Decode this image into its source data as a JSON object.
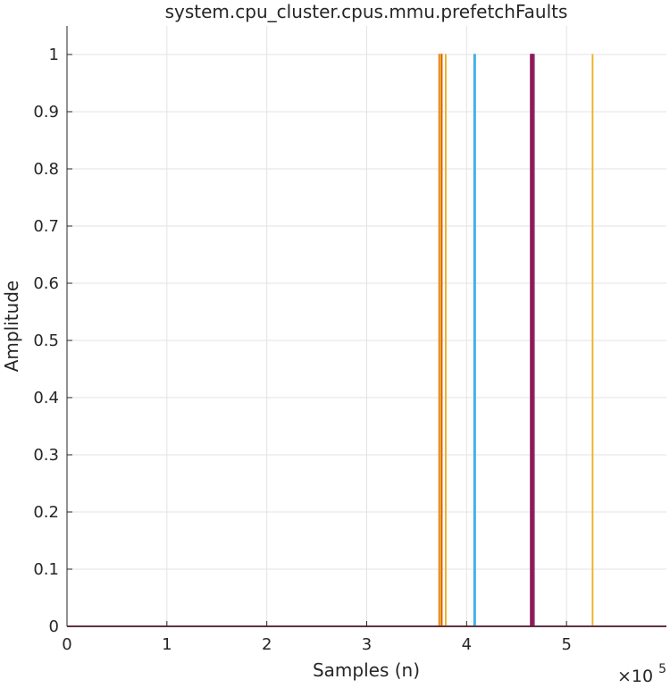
{
  "chart_data": {
    "type": "line",
    "title": "system.cpu_cluster.cpus.mmu.prefetchFaults",
    "xlabel": "Samples (n)",
    "ylabel": "Amplitude",
    "xlim": [
      0,
      600000
    ],
    "ylim": [
      0,
      1.05
    ],
    "x_scale_label": "×10",
    "x_scale_exponent": "5",
    "x_ticks": [
      {
        "value": 0,
        "label": "0"
      },
      {
        "value": 100000,
        "label": "1"
      },
      {
        "value": 200000,
        "label": "2"
      },
      {
        "value": 300000,
        "label": "3"
      },
      {
        "value": 400000,
        "label": "4"
      },
      {
        "value": 500000,
        "label": "5"
      }
    ],
    "y_ticks": [
      {
        "value": 0,
        "label": "0"
      },
      {
        "value": 0.1,
        "label": "0.1"
      },
      {
        "value": 0.2,
        "label": "0.2"
      },
      {
        "value": 0.3,
        "label": "0.3"
      },
      {
        "value": 0.4,
        "label": "0.4"
      },
      {
        "value": 0.5,
        "label": "0.5"
      },
      {
        "value": 0.6,
        "label": "0.6"
      },
      {
        "value": 0.7,
        "label": "0.7"
      },
      {
        "value": 0.8,
        "label": "0.8"
      },
      {
        "value": 0.9,
        "label": "0.9"
      },
      {
        "value": 1,
        "label": "1"
      }
    ],
    "grid": true,
    "legend": "none",
    "x_start": 0,
    "x_end": 600000,
    "series": [
      {
        "color": "#0072BD",
        "pulses": [
          [
            407500,
            408300
          ]
        ],
        "width": 1.2
      },
      {
        "color": "#D95319",
        "pulses": [
          [
            372500,
            373500
          ],
          [
            374400,
            375200
          ]
        ],
        "width": 1.6
      },
      {
        "color": "#EDB120",
        "pulses": [
          [
            373000,
            374000
          ],
          [
            378800,
            379400
          ],
          [
            525800,
            526400
          ]
        ],
        "width": 1.2
      },
      {
        "color": "#4DBEEE",
        "pulses": [
          [
            408000,
            409000
          ]
        ],
        "width": 1.2
      },
      {
        "color": "#7E2F8E",
        "pulses": [
          [
            464000,
            465000
          ],
          [
            466500,
            467500
          ]
        ],
        "width": 1.6
      },
      {
        "color": "#A2142F",
        "pulses": [
          [
            465000,
            466000
          ]
        ],
        "width": 1.4
      }
    ]
  }
}
